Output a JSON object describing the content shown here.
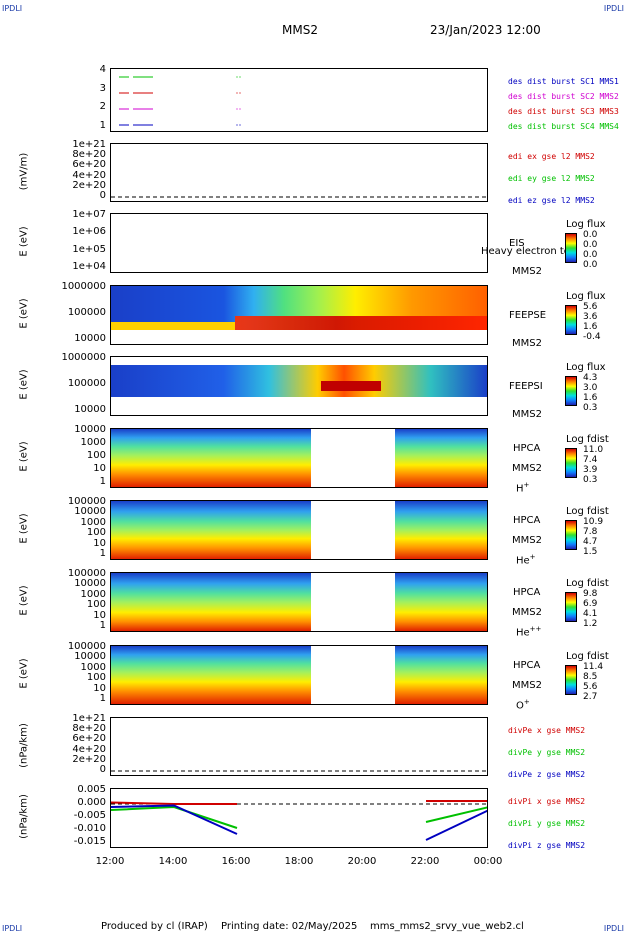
{
  "header": {
    "corner_left": "IPDLI",
    "corner_right": "IPDLI",
    "spacecraft": "MMS2",
    "datetime": "23/Jan/2023 12:00"
  },
  "footer": {
    "produced_by": "Produced by cl (IRAP)",
    "printing_date": "Printing date: 02/May/2025",
    "script": "mms_mms2_srvy_vue_web2.cl",
    "corner_left": "IPDLI",
    "corner_right": "IPDLI"
  },
  "x_axis": {
    "ticks": [
      "12:00",
      "14:00",
      "16:00",
      "18:00",
      "20:00",
      "22:00",
      "00:00"
    ]
  },
  "colors": {
    "red": "#d00000",
    "green": "#00c000",
    "blue": "#0000c0",
    "magenta": "#d000d0"
  },
  "panels": [
    {
      "id": "dist",
      "ylabel": "",
      "ticks": [
        "4",
        "3",
        "2",
        "1"
      ],
      "legend": [
        {
          "text": "des dist burst SC1 MMS1",
          "color": "#0000c0"
        },
        {
          "text": "des dist burst SC2 MMS2",
          "color": "#d000d0"
        },
        {
          "text": "des dist burst SC3 MMS3",
          "color": "#d00000"
        },
        {
          "text": "des dist burst SC4 MMS4",
          "color": "#00c000"
        }
      ]
    },
    {
      "id": "edi",
      "ylabel": "(mV/m)",
      "ticks": [
        "1e+21",
        "8e+20",
        "6e+20",
        "4e+20",
        "2e+20",
        "0"
      ],
      "legend": [
        {
          "text": "edi ex gse l2 MMS2",
          "color": "#d00000"
        },
        {
          "text": "edi ey gse l2 MMS2",
          "color": "#00c000"
        },
        {
          "text": "edi ez gse l2 MMS2",
          "color": "#0000c0"
        }
      ]
    },
    {
      "id": "eis",
      "ylabel": "E (eV)",
      "ticks": [
        "1e+07",
        "1e+06",
        "1e+05",
        "1e+04"
      ],
      "instrument": "EIS",
      "sc": "MMS2",
      "species": "",
      "overlay": "Heavy electron to",
      "cb_title": "Log flux",
      "cb_values": [
        "0.0",
        "0.0",
        "0.0",
        "0.0"
      ]
    },
    {
      "id": "feepse",
      "ylabel": "E (eV)",
      "ticks": [
        "1000000",
        "100000",
        "10000"
      ],
      "instrument": "FEEPSE",
      "sc": "MMS2",
      "species": "",
      "cb_title": "Log flux",
      "cb_values": [
        "5.6",
        "3.6",
        "1.6",
        "-0.4"
      ]
    },
    {
      "id": "feepsi",
      "ylabel": "E (eV)",
      "ticks": [
        "1000000",
        "100000",
        "10000"
      ],
      "instrument": "FEEPSI",
      "sc": "MMS2",
      "species": "",
      "cb_title": "Log flux",
      "cb_values": [
        "4.3",
        "3.0",
        "1.6",
        "0.3"
      ]
    },
    {
      "id": "hpca_h",
      "ylabel": "E (eV)",
      "ticks": [
        "10000",
        "1000",
        "100",
        "10",
        "1"
      ],
      "instrument": "HPCA",
      "sc": "MMS2",
      "species": "H",
      "species_sup": "+",
      "cb_title": "Log fdist",
      "cb_values": [
        "11.0",
        "7.4",
        "3.9",
        "0.3"
      ]
    },
    {
      "id": "hpca_he",
      "ylabel": "E (eV)",
      "ticks": [
        "100000",
        "10000",
        "1000",
        "100",
        "10",
        "1"
      ],
      "instrument": "HPCA",
      "sc": "MMS2",
      "species": "He",
      "species_sup": "+",
      "cb_title": "Log fdist",
      "cb_values": [
        "10.9",
        "7.8",
        "4.7",
        "1.5"
      ]
    },
    {
      "id": "hpca_hepp",
      "ylabel": "E (eV)",
      "ticks": [
        "100000",
        "10000",
        "1000",
        "100",
        "10",
        "1"
      ],
      "instrument": "HPCA",
      "sc": "MMS2",
      "species": "He",
      "species_sup": "++",
      "cb_title": "Log fdist",
      "cb_values": [
        "9.8",
        "6.9",
        "4.1",
        "1.2"
      ]
    },
    {
      "id": "hpca_o",
      "ylabel": "E (eV)",
      "ticks": [
        "100000",
        "10000",
        "1000",
        "100",
        "10",
        "1"
      ],
      "instrument": "HPCA",
      "sc": "MMS2",
      "species": "O",
      "species_sup": "+",
      "cb_title": "Log fdist",
      "cb_values": [
        "11.4",
        "8.5",
        "5.6",
        "2.7"
      ]
    },
    {
      "id": "divpe",
      "ylabel": "(nPa/km)",
      "ticks": [
        "1e+21",
        "8e+20",
        "6e+20",
        "4e+20",
        "2e+20",
        "0"
      ],
      "legend": [
        {
          "text": "divPe x gse MMS2",
          "color": "#d00000"
        },
        {
          "text": "divPe y gse MMS2",
          "color": "#00c000"
        },
        {
          "text": "divPe z gse MMS2",
          "color": "#0000c0"
        }
      ]
    },
    {
      "id": "divpi",
      "ylabel": "(nPa/km)",
      "ticks": [
        "0.005",
        "0.000",
        "-0.005",
        "-0.010",
        "-0.015"
      ],
      "legend": [
        {
          "text": "divPi x gse MMS2",
          "color": "#d00000"
        },
        {
          "text": "divPi y gse MMS2",
          "color": "#00c000"
        },
        {
          "text": "divPi z gse MMS2",
          "color": "#0000c0"
        }
      ]
    }
  ],
  "chart_data": {
    "type": "line",
    "title": "MMS2",
    "x": [
      "12:00",
      "14:00",
      "16:00",
      "18:00",
      "20:00",
      "22:00",
      "00:00"
    ],
    "xlim": [
      "12:00",
      "00:00"
    ],
    "ylim": [
      -0.015,
      0.005
    ],
    "ylabel": "(nPa/km)",
    "series": [
      {
        "name": "divPi x gse MMS2",
        "values": [
          0.0005,
          0.0,
          0.0,
          null,
          null,
          0.001,
          0.001
        ]
      },
      {
        "name": "divPi y gse MMS2",
        "values": [
          -0.002,
          -0.001,
          -0.008,
          null,
          null,
          -0.006,
          -0.001
        ]
      },
      {
        "name": "divPi z gse MMS2",
        "values": [
          -0.001,
          -0.0005,
          -0.01,
          null,
          null,
          -0.012,
          -0.002
        ]
      }
    ]
  }
}
